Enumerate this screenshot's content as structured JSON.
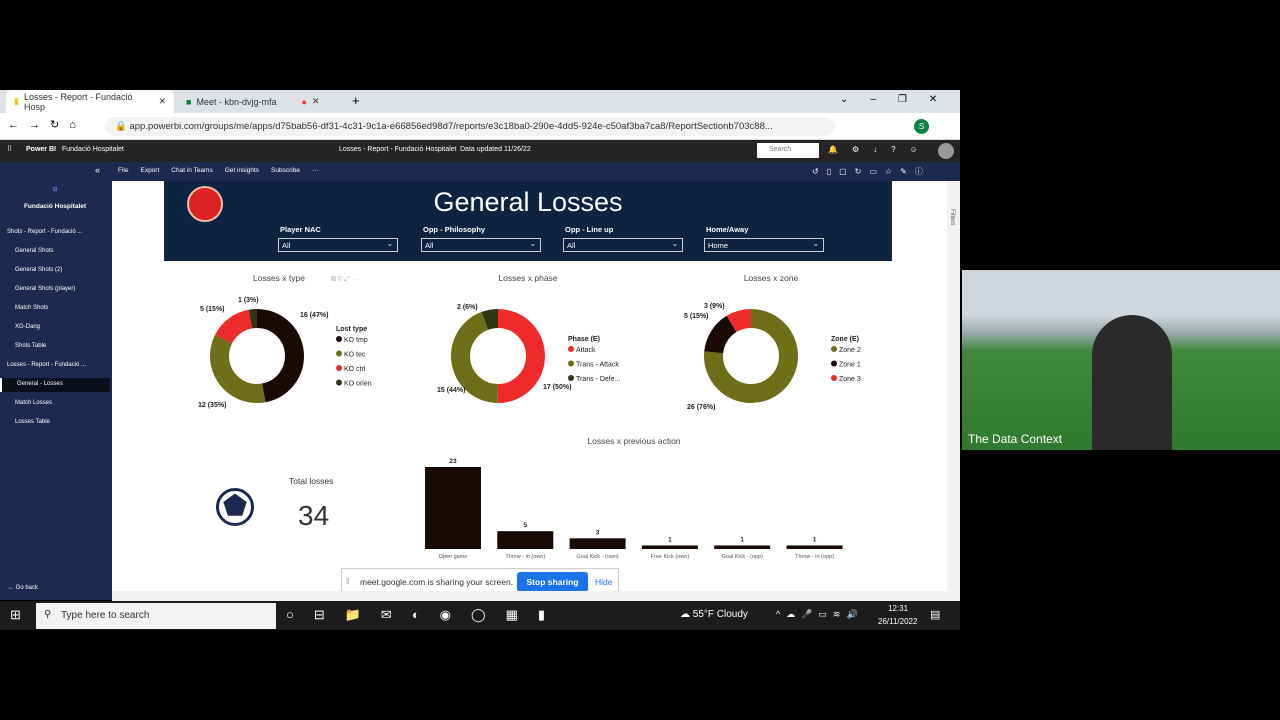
{
  "browser": {
    "tabs": [
      {
        "label": "Losses - Report - Fundació Hosp",
        "close": "✕"
      },
      {
        "label": "Meet - kbn-dvjg-mfa",
        "close": "✕"
      }
    ],
    "new_tab": "+",
    "url": "app.powerbi.com/groups/me/apps/d75bab56-df31-4c31-9c1a-e66856ed98d7/reports/e3c18ba0-290e-4dd5-924e-c50af3ba7ca8/ReportSectionb703c88...",
    "profile": "S"
  },
  "powerbi": {
    "brand": "Power BI",
    "workspace": "Fundació Hospitalet",
    "report_title": "Losses - Report - Fundació Hospitalet",
    "updated": "Data updated 11/26/22",
    "search_placeholder": "Search",
    "toolbar": [
      "File",
      "Export",
      "Chat in Teams",
      "Get insights",
      "Subscribe",
      "···"
    ]
  },
  "sidebar": {
    "app_name": "Fundació Hospitalet",
    "sections": [
      {
        "label": "Shots - Report - Fundació ...",
        "items": [
          "General Shots",
          "General Shots (2)",
          "General Shots (player)",
          "Match Shots",
          "XG-Dang",
          "Shots Table"
        ]
      },
      {
        "label": "Losses - Report - Fundació ...",
        "items": [
          "General - Losses",
          "Match Losses",
          "Losses Table"
        ]
      }
    ],
    "selected": "General - Losses",
    "go_back": "Go back"
  },
  "report": {
    "title": "General Losses",
    "filters": [
      {
        "label": "Player NAC",
        "value": "All"
      },
      {
        "label": "Opp - Philosophy",
        "value": "All"
      },
      {
        "label": "Opp - Line up",
        "value": "All"
      },
      {
        "label": "Home/Away",
        "value": "Home"
      }
    ],
    "total_label": "Total losses",
    "total_value": "34",
    "filters_pane": "Filters"
  },
  "chart_data": [
    {
      "type": "pie",
      "title": "Losses x type",
      "legend_title": "Lost type",
      "categories": [
        "KO tmp",
        "KO tec",
        "KO ctrl",
        "KO orien"
      ],
      "values": [
        16,
        12,
        5,
        1
      ],
      "labels": [
        "16 (47%)",
        "12 (35%)",
        "5 (15%)",
        "1 (3%)"
      ],
      "colors": [
        "#1a0a06",
        "#6e6e18",
        "#ee2a2a",
        "#2e3616"
      ]
    },
    {
      "type": "pie",
      "title": "Losses x phase",
      "legend_title": "Phase (E)",
      "categories": [
        "Attack",
        "Trans - Attack",
        "Trans - Defe..."
      ],
      "values": [
        17,
        15,
        2
      ],
      "labels": [
        "17 (50%)",
        "15 (44%)",
        "2 (6%)"
      ],
      "colors": [
        "#ee2a2a",
        "#6e6e18",
        "#2e3616"
      ]
    },
    {
      "type": "pie",
      "title": "Losses x zone",
      "legend_title": "Zone (E)",
      "categories": [
        "Zone 2",
        "Zone 1",
        "Zone 3"
      ],
      "values": [
        26,
        5,
        3
      ],
      "labels": [
        "26 (76%)",
        "5 (15%)",
        "3 (9%)"
      ],
      "colors": [
        "#6e6e18",
        "#1a0a06",
        "#ee2a2a"
      ]
    },
    {
      "type": "bar",
      "title": "Losses x previous action",
      "categories": [
        "Open game",
        "Throw - in (own)",
        "Goal Kick - (own)",
        "Free Kick (own)",
        "Goal Kick - (opp)",
        "Throw - in (opp)"
      ],
      "values": [
        23,
        5,
        3,
        1,
        1,
        1
      ],
      "color": "#1a0a06"
    }
  ],
  "share": {
    "text": "meet.google.com is sharing your screen.",
    "stop": "Stop sharing",
    "hide": "Hide"
  },
  "taskbar": {
    "search_placeholder": "Type here to search",
    "weather": "55°F  Cloudy",
    "time": "12:31",
    "date": "26/11/2022"
  },
  "webcam": {
    "name": "The Data Context"
  }
}
